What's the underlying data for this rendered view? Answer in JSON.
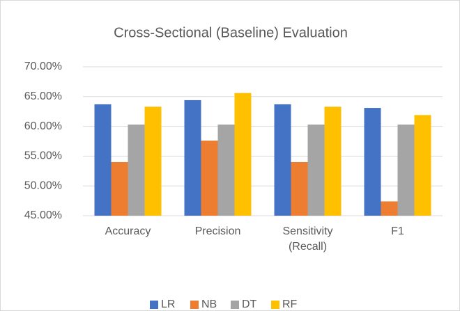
{
  "chart_data": {
    "type": "bar",
    "title": "Cross-Sectional (Baseline) Evaluation",
    "categories": [
      "Accuracy",
      "Precision",
      "Sensitivity (Recall)",
      "F1"
    ],
    "series": [
      {
        "name": "LR",
        "color": "#4472c4",
        "values": [
          63.7,
          64.4,
          63.7,
          63.1
        ]
      },
      {
        "name": "NB",
        "color": "#ed7d31",
        "values": [
          54.0,
          57.6,
          54.0,
          47.4
        ]
      },
      {
        "name": "DT",
        "color": "#a5a5a5",
        "values": [
          60.3,
          60.3,
          60.3,
          60.3
        ]
      },
      {
        "name": "RF",
        "color": "#ffc000",
        "values": [
          63.3,
          65.6,
          63.3,
          61.9
        ]
      }
    ],
    "ylim": [
      45,
      70
    ],
    "yticks": [
      {
        "value": 45,
        "label": "45.00%"
      },
      {
        "value": 50,
        "label": "50.00%"
      },
      {
        "value": 55,
        "label": "55.00%"
      },
      {
        "value": 60,
        "label": "60.00%"
      },
      {
        "value": 65,
        "label": "65.00%"
      },
      {
        "value": 70,
        "label": "70.00%"
      }
    ],
    "grid": true,
    "legend": "bottom"
  }
}
